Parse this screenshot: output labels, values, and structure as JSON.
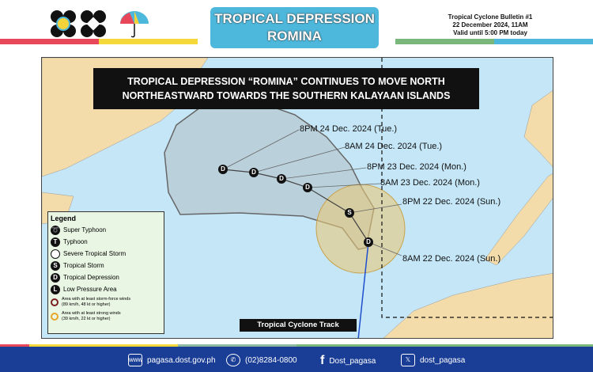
{
  "header": {
    "title_line1": "TROPICAL DEPRESSION",
    "title_line2": "ROMINA",
    "bulletin": "Tropical Cyclone Bulletin #1",
    "date": "22 December 2024, 11AM",
    "valid": "Valid until 5:00 PM today"
  },
  "map": {
    "headline_line1": "TROPICAL DEPRESSION “ROMINA” CONTINUES TO MOVE NORTH",
    "headline_line2": "NORTHEASTWARD TOWARDS THE SOUTHERN KALAYAAN ISLANDS",
    "track_label": "Tropical Cyclone Track",
    "track": [
      {
        "symbol": "D",
        "label": "8AM 22 Dec. 2024 (Sun.)"
      },
      {
        "symbol": "S",
        "label": "8PM 22 Dec. 2024 (Sun.)"
      },
      {
        "symbol": "D",
        "label": "8AM 23 Dec. 2024 (Mon.)"
      },
      {
        "symbol": "D",
        "label": "8PM 23 Dec. 2024 (Mon.)"
      },
      {
        "symbol": "D",
        "label": "8AM 24 Dec. 2024 (Tue.)"
      },
      {
        "symbol": "D",
        "label": "8PM 24 Dec. 2024 (Tue.)"
      }
    ],
    "colors": {
      "sea": "#c4e6f7",
      "land": "#f4dcaa",
      "cone": "#a9a9a9",
      "wind_area": "#e8c87a",
      "track_line": "#1f4fcf"
    }
  },
  "legend": {
    "title": "Legend",
    "items": [
      {
        "symbol": "super-typhoon-icon",
        "label": "Super Typhoon"
      },
      {
        "symbol": "T",
        "label": "Typhoon"
      },
      {
        "symbol": "severe-tropical-storm-icon",
        "label": "Severe Tropical Storm"
      },
      {
        "symbol": "S",
        "label": "Tropical Storm"
      },
      {
        "symbol": "D",
        "label": "Tropical Depression"
      },
      {
        "symbol": "L",
        "label": "Low Pressure Area"
      }
    ],
    "storm_force_1": "Area with at least storm-force winds",
    "storm_force_2": "(89 km/h, 48 kt or higher)",
    "strong_1": "Area with at least strong winds",
    "strong_2": "(39 km/h, 22 kt or higher)"
  },
  "footer": {
    "website": "pagasa.dost.gov.ph",
    "phone": "(02)8284-0800",
    "facebook": "Dost_pagasa",
    "x": "dost_pagasa",
    "www_icon": "www"
  }
}
